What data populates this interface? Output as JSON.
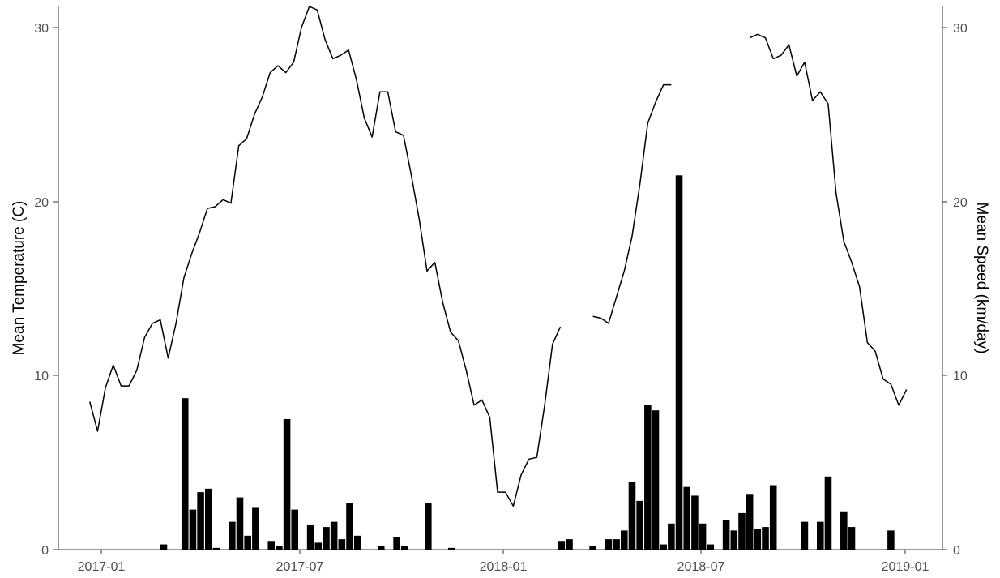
{
  "chart_data": {
    "type": "bar",
    "title": "",
    "xlabel": "",
    "ylabel": "Mean Temperature (C)",
    "y2label": "Mean Speed (km/day)",
    "x_ticks": [
      "2017-01",
      "2017-07",
      "2018-01",
      "2018-07",
      "2019-01"
    ],
    "y_ticks": [
      0,
      10,
      20,
      30
    ],
    "y2_ticks": [
      0,
      10,
      20,
      30
    ],
    "xlim": [
      "2016-12-04",
      "2019-02-01"
    ],
    "ylim": [
      0,
      31.2
    ],
    "y2lim": [
      0,
      31.2
    ],
    "grid": false,
    "legend": "none",
    "colors": {
      "bars": "#000000",
      "line": "#000000"
    },
    "series": [
      {
        "kind": "bar",
        "axis": "right",
        "dates": [
          "2017-03-08",
          "2017-03-27",
          "2017-04-03",
          "2017-04-10",
          "2017-04-17",
          "2017-04-24",
          "2017-05-08",
          "2017-05-15",
          "2017-05-22",
          "2017-05-29",
          "2017-06-12",
          "2017-06-19",
          "2017-06-26",
          "2017-07-03",
          "2017-07-17",
          "2017-07-24",
          "2017-07-31",
          "2017-08-07",
          "2017-08-14",
          "2017-08-21",
          "2017-08-28",
          "2017-09-18",
          "2017-10-02",
          "2017-10-09",
          "2017-10-30",
          "2017-11-20",
          "2018-02-26",
          "2018-03-05",
          "2018-03-26",
          "2018-04-09",
          "2018-04-16",
          "2018-04-23",
          "2018-04-30",
          "2018-05-07",
          "2018-05-14",
          "2018-05-21",
          "2018-05-28",
          "2018-06-04",
          "2018-06-11",
          "2018-06-18",
          "2018-06-25",
          "2018-07-02",
          "2018-07-09",
          "2018-07-23",
          "2018-07-30",
          "2018-08-06",
          "2018-08-13",
          "2018-08-20",
          "2018-08-27",
          "2018-09-03",
          "2018-09-10",
          "2018-10-01",
          "2018-10-15",
          "2018-10-22",
          "2018-11-05",
          "2018-11-12",
          "2018-12-17"
        ],
        "values": [
          0.3,
          8.7,
          2.3,
          3.3,
          3.5,
          0.1,
          1.6,
          3.0,
          0.8,
          2.4,
          0.5,
          0.2,
          7.5,
          2.3,
          1.4,
          0.4,
          1.3,
          1.6,
          0.6,
          2.7,
          0.8,
          0.2,
          0.7,
          0.2,
          2.7,
          0.1,
          0.5,
          0.6,
          0.2,
          0.6,
          0.6,
          1.1,
          3.9,
          2.8,
          8.3,
          8.0,
          0.3,
          1.5,
          21.5,
          3.6,
          3.1,
          1.5,
          0.3,
          1.7,
          1.1,
          2.1,
          3.2,
          1.2,
          1.3,
          3.7,
          0.0,
          1.6,
          1.6,
          4.2,
          2.2,
          1.3,
          1.1
        ]
      },
      {
        "kind": "line",
        "axis": "left",
        "segments": [
          {
            "dates": [
              "2017-01-01",
              "2017-01-08",
              "2017-01-15",
              "2017-01-22",
              "2017-01-29",
              "2017-02-05",
              "2017-02-12",
              "2017-02-19",
              "2017-02-26",
              "2017-03-05",
              "2017-03-12",
              "2017-03-19",
              "2017-03-26",
              "2017-04-02",
              "2017-04-09",
              "2017-04-16",
              "2017-04-23",
              "2017-04-30",
              "2017-05-07",
              "2017-05-14",
              "2017-05-21",
              "2017-05-28",
              "2017-06-04",
              "2017-06-11",
              "2017-06-18",
              "2017-06-25",
              "2017-07-02",
              "2017-07-09",
              "2017-07-16",
              "2017-07-23",
              "2017-07-30",
              "2017-08-06",
              "2017-08-13",
              "2017-08-20",
              "2017-08-27",
              "2017-09-03",
              "2017-09-10",
              "2017-09-17",
              "2017-09-24",
              "2017-10-01",
              "2017-10-08",
              "2017-10-15",
              "2017-10-22",
              "2017-10-29",
              "2017-11-05",
              "2017-11-12",
              "2017-11-19",
              "2017-11-26",
              "2017-12-03",
              "2017-12-10",
              "2017-12-17",
              "2017-12-24",
              "2017-12-31",
              "2018-01-07",
              "2018-01-14",
              "2018-01-21",
              "2018-01-28",
              "2018-02-04",
              "2018-02-11",
              "2018-02-18",
              "2018-02-25"
            ],
            "values": [
              8.5,
              6.8,
              9.3,
              10.6,
              9.4,
              9.4,
              10.3,
              12.2,
              13.0,
              13.2,
              11.0,
              13.0,
              15.6,
              17.0,
              18.2,
              19.6,
              19.7,
              20.1,
              19.9,
              23.2,
              23.6,
              25.0,
              26.0,
              27.4,
              27.8,
              27.4,
              28.0,
              30.0,
              31.2,
              31.0,
              29.3,
              28.2,
              28.4,
              28.7,
              27.0,
              24.8,
              23.7,
              26.3,
              26.3,
              24.0,
              23.8,
              21.5,
              19.0,
              16.0,
              16.5,
              14.2,
              12.5,
              12.0,
              10.3,
              8.3,
              8.6,
              7.6,
              3.3,
              3.3,
              2.5,
              4.3,
              5.2,
              5.3,
              8.3,
              11.8,
              12.8
            ]
          },
          {
            "dates": [
              "2018-03-26",
              "2018-04-02",
              "2018-04-09",
              "2018-04-16",
              "2018-04-23",
              "2018-04-30",
              "2018-05-07",
              "2018-05-14",
              "2018-05-21",
              "2018-05-28",
              "2018-06-04"
            ],
            "values": [
              13.4,
              13.3,
              13.0,
              14.5,
              16.0,
              18.0,
              21.0,
              24.5,
              25.7,
              26.7,
              26.7
            ]
          },
          {
            "dates": [
              "2018-08-13",
              "2018-08-20",
              "2018-08-27",
              "2018-09-03",
              "2018-09-10",
              "2018-09-17",
              "2018-09-24",
              "2018-10-01",
              "2018-10-08",
              "2018-10-15",
              "2018-10-22",
              "2018-10-29",
              "2018-11-05",
              "2018-11-12",
              "2018-11-19",
              "2018-11-26",
              "2018-12-03",
              "2018-12-10",
              "2018-12-17",
              "2018-12-24",
              "2018-12-31"
            ],
            "values": [
              29.4,
              29.6,
              29.4,
              28.2,
              28.4,
              29.0,
              27.2,
              28.0,
              25.8,
              26.3,
              25.6,
              20.5,
              17.7,
              16.5,
              15.1,
              11.9,
              11.4,
              9.8,
              9.5,
              8.3,
              9.2
            ]
          }
        ]
      }
    ]
  }
}
